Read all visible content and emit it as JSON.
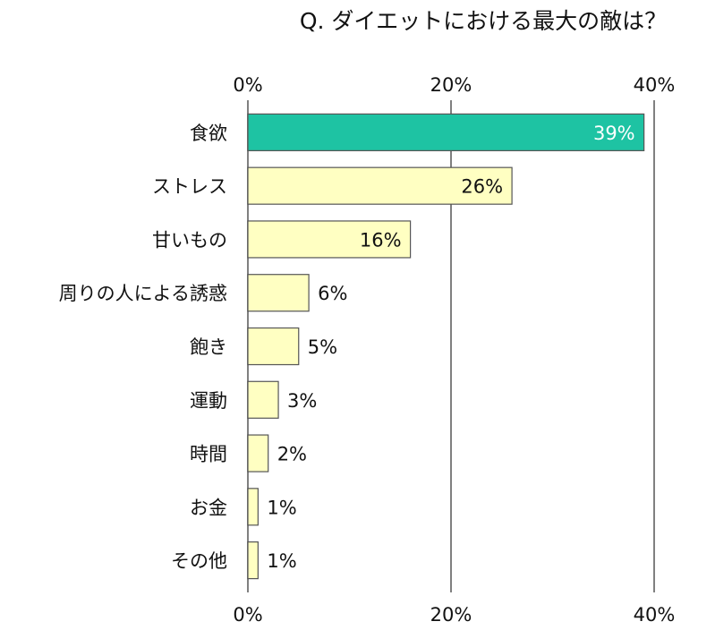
{
  "chart_data": {
    "type": "bar",
    "orientation": "horizontal",
    "title": "Q. ダイエットにおける最大の敵は？",
    "categories": [
      "食欲",
      "ストレス",
      "甘いもの",
      "周りの人による誘惑",
      "飽き",
      "運動",
      "時間",
      "お金",
      "その他"
    ],
    "values": [
      39,
      26,
      16,
      6,
      5,
      3,
      2,
      1,
      1
    ],
    "value_labels": [
      "39%",
      "26%",
      "16%",
      "6%",
      "5%",
      "3%",
      "2%",
      "1%",
      "1%"
    ],
    "xlim": [
      0,
      40
    ],
    "xticks": [
      0,
      20,
      40
    ],
    "xtick_labels": [
      "0%",
      "20%",
      "40%"
    ],
    "xaxis_position": "top and bottom",
    "grid": true,
    "xlabel": "",
    "ylabel": "",
    "colors": {
      "highlight_bar": "#1ec3a3",
      "bar": "#ffffc2",
      "bar_stroke": "#555555",
      "grid": "#808080",
      "highlight_label": "#ffffff"
    }
  }
}
